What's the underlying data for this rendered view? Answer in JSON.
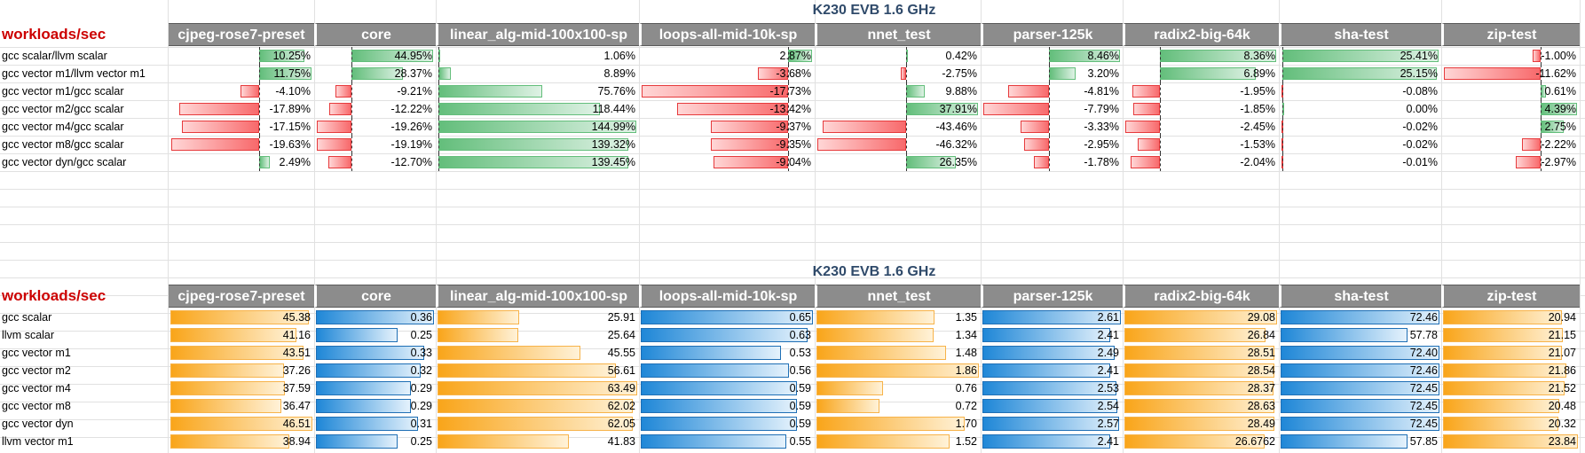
{
  "sheet": {
    "columns": [
      "cjpeg-rose7-preset",
      "core",
      "linear_alg-mid-100x100-sp",
      "loops-all-mid-10k-sp",
      "nnet_test",
      "parser-125k",
      "radix2-big-64k",
      "sha-test",
      "zip-test"
    ]
  },
  "relative": {
    "title": "K230 EVB 1.6 GHz",
    "corner": "workloads/sec",
    "rows": [
      {
        "label": "gcc scalar/llvm scalar",
        "texts": [
          "10.25%",
          "44.95%",
          "1.06%",
          "2.87%",
          "0.42%",
          "8.46%",
          "8.36%",
          "25.41%",
          "-1.00%"
        ],
        "values": [
          10.25,
          44.95,
          1.06,
          2.87,
          0.42,
          8.46,
          8.36,
          25.41,
          -1.0
        ]
      },
      {
        "label": "gcc vector m1/llvm vector m1",
        "texts": [
          "11.75%",
          "28.37%",
          "8.89%",
          "-3.68%",
          "-2.75%",
          "3.20%",
          "6.89%",
          "25.15%",
          "-11.62%"
        ],
        "values": [
          11.75,
          28.37,
          8.89,
          -3.68,
          -2.75,
          3.2,
          6.89,
          25.15,
          -11.62
        ]
      },
      {
        "label": "gcc vector m1/gcc scalar",
        "texts": [
          "-4.10%",
          "-9.21%",
          "75.76%",
          "-17.73%",
          "9.88%",
          "-4.81%",
          "-1.95%",
          "-0.08%",
          "0.61%"
        ],
        "values": [
          -4.1,
          -9.21,
          75.76,
          -17.73,
          9.88,
          -4.81,
          -1.95,
          -0.08,
          0.61
        ]
      },
      {
        "label": "gcc vector m2/gcc scalar",
        "texts": [
          "-17.89%",
          "-12.22%",
          "118.44%",
          "-13.42%",
          "37.91%",
          "-7.79%",
          "-1.85%",
          "0.00%",
          "4.39%"
        ],
        "values": [
          -17.89,
          -12.22,
          118.44,
          -13.42,
          37.91,
          -7.79,
          -1.85,
          0.0,
          4.39
        ]
      },
      {
        "label": "gcc vector m4/gcc scalar",
        "texts": [
          "-17.15%",
          "-19.26%",
          "144.99%",
          "-9.37%",
          "-43.46%",
          "-3.33%",
          "-2.45%",
          "-0.02%",
          "2.75%"
        ],
        "values": [
          -17.15,
          -19.26,
          144.99,
          -9.37,
          -43.46,
          -3.33,
          -2.45,
          -0.02,
          2.75
        ]
      },
      {
        "label": "gcc vector m8/gcc scalar",
        "texts": [
          "-19.63%",
          "-19.19%",
          "139.32%",
          "-9.35%",
          "-46.32%",
          "-2.95%",
          "-1.53%",
          "-0.02%",
          "-2.22%"
        ],
        "values": [
          -19.63,
          -19.19,
          139.32,
          -9.35,
          -46.32,
          -2.95,
          -1.53,
          -0.02,
          -2.22
        ]
      },
      {
        "label": "gcc vector dyn/gcc scalar",
        "texts": [
          "2.49%",
          "-12.70%",
          "139.45%",
          "-9.04%",
          "26.35%",
          "-1.78%",
          "-2.04%",
          "-0.01%",
          "-2.97%"
        ],
        "values": [
          2.49,
          -12.7,
          139.45,
          -9.04,
          26.35,
          -1.78,
          -2.04,
          -0.01,
          -2.97
        ]
      }
    ]
  },
  "absolute": {
    "title": "K230 EVB 1.6 GHz",
    "corner": "workloads/sec",
    "bar_styles": [
      "orange",
      "blue",
      "orange",
      "blue",
      "orange",
      "blue",
      "orange",
      "blue",
      "orange"
    ],
    "rows": [
      {
        "label": "gcc scalar",
        "texts": [
          "45.38",
          "0.36",
          "25.91",
          "0.65",
          "1.35",
          "2.61",
          "29.08",
          "72.46",
          "20.94"
        ],
        "values": [
          45.38,
          0.36,
          25.91,
          0.65,
          1.35,
          2.61,
          29.08,
          72.46,
          20.94
        ]
      },
      {
        "label": "llvm scalar",
        "texts": [
          "41.16",
          "0.25",
          "25.64",
          "0.63",
          "1.34",
          "2.41",
          "26.84",
          "57.78",
          "21.15"
        ],
        "values": [
          41.16,
          0.25,
          25.64,
          0.63,
          1.34,
          2.41,
          26.84,
          57.78,
          21.15
        ]
      },
      {
        "label": "gcc vector m1",
        "texts": [
          "43.51",
          "0.33",
          "45.55",
          "0.53",
          "1.48",
          "2.49",
          "28.51",
          "72.40",
          "21.07"
        ],
        "values": [
          43.51,
          0.33,
          45.55,
          0.53,
          1.48,
          2.49,
          28.51,
          72.4,
          21.07
        ]
      },
      {
        "label": "gcc vector m2",
        "texts": [
          "37.26",
          "0.32",
          "56.61",
          "0.56",
          "1.86",
          "2.41",
          "28.54",
          "72.46",
          "21.86"
        ],
        "values": [
          37.26,
          0.32,
          56.61,
          0.56,
          1.86,
          2.41,
          28.54,
          72.46,
          21.86
        ]
      },
      {
        "label": "gcc vector m4",
        "texts": [
          "37.59",
          "0.29",
          "63.49",
          "0.59",
          "0.76",
          "2.53",
          "28.37",
          "72.45",
          "21.52"
        ],
        "values": [
          37.59,
          0.29,
          63.49,
          0.59,
          0.76,
          2.53,
          28.37,
          72.45,
          21.52
        ]
      },
      {
        "label": "gcc vector m8",
        "texts": [
          "36.47",
          "0.29",
          "62.02",
          "0.59",
          "0.72",
          "2.54",
          "28.63",
          "72.45",
          "20.48"
        ],
        "values": [
          36.47,
          0.29,
          62.02,
          0.59,
          0.72,
          2.54,
          28.63,
          72.45,
          20.48
        ]
      },
      {
        "label": "gcc vector dyn",
        "texts": [
          "46.51",
          "0.31",
          "62.05",
          "0.59",
          "1.70",
          "2.57",
          "28.49",
          "72.45",
          "20.32"
        ],
        "values": [
          46.51,
          0.31,
          62.05,
          0.59,
          1.7,
          2.57,
          28.49,
          72.45,
          20.32
        ]
      },
      {
        "label": "llvm vector m1",
        "texts": [
          "38.94",
          "0.25",
          "41.83",
          "0.55",
          "1.52",
          "2.41",
          "26.6762",
          "57.85",
          "23.84"
        ],
        "values": [
          38.94,
          0.25,
          41.83,
          0.55,
          1.52,
          2.41,
          26.6762,
          57.85,
          23.84
        ]
      }
    ]
  }
}
